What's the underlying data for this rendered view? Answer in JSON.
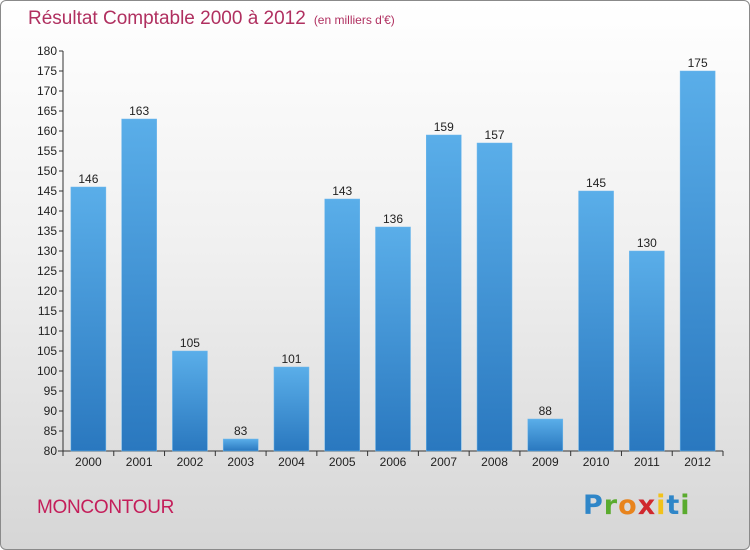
{
  "header": {
    "title": "Résultat Comptable 2000 à 2012",
    "subtitle": "(en milliers d'€)"
  },
  "footer": {
    "commune": "MONCONTOUR",
    "logo_letters": [
      "P",
      "r",
      "o",
      "x",
      "i",
      "t",
      "i"
    ]
  },
  "chart_data": {
    "type": "bar",
    "title": "Résultat Comptable 2000 à 2012",
    "subtitle": "(en milliers d'€)",
    "xlabel": "",
    "ylabel": "",
    "categories": [
      "2000",
      "2001",
      "2002",
      "2003",
      "2004",
      "2005",
      "2006",
      "2007",
      "2008",
      "2009",
      "2010",
      "2011",
      "2012"
    ],
    "values": [
      146,
      163,
      105,
      83,
      101,
      143,
      136,
      159,
      157,
      88,
      145,
      130,
      175
    ],
    "ylim": [
      80,
      180
    ],
    "ytick_step": 5,
    "grid": false,
    "legend": "none",
    "bar_color": "#4a9fe0",
    "bar_color_dark": "#2a78bf"
  }
}
